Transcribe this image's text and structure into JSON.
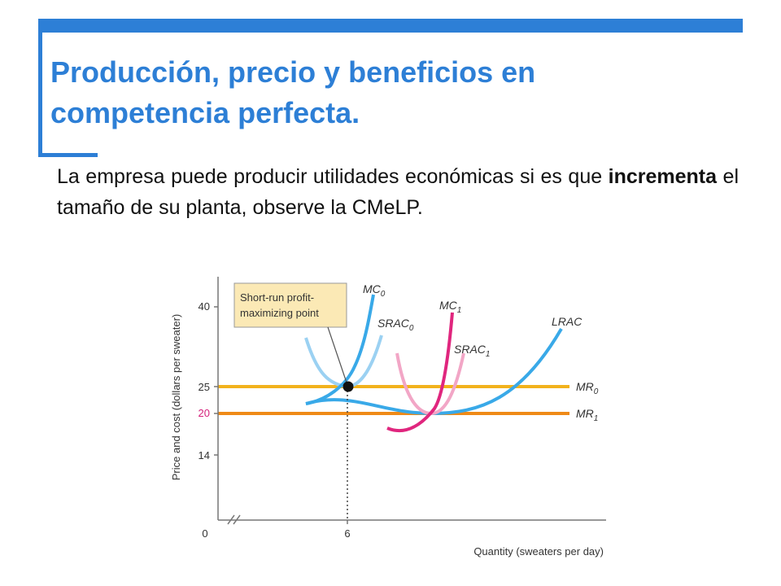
{
  "slide": {
    "title": "Producción, precio y beneficios en competencia perfecta.",
    "paragraph": {
      "before": "La empresa puede producir utilidades económicas si es que ",
      "bold": "incrementa",
      "after": " el tamaño de su planta, observe la CMeLP."
    }
  },
  "chart_data": {
    "type": "diagram",
    "ylabel": "Price and cost (dollars per sweater)",
    "xlabel": "Quantity (sweaters per day)",
    "y_ticks": [
      {
        "label": "40",
        "value": 40,
        "color": "#333333"
      },
      {
        "label": "25",
        "value": 25,
        "color": "#333333"
      },
      {
        "label": "20",
        "value": 20,
        "color": "#d41f7a"
      },
      {
        "label": "14",
        "value": 14,
        "color": "#333333"
      }
    ],
    "x_ticks": [
      {
        "label": "0",
        "value": 0
      },
      {
        "label": "6",
        "value": 6
      }
    ],
    "curves": [
      {
        "id": "MC0",
        "label": "MC",
        "sub": "0",
        "color": "#39a9e8"
      },
      {
        "id": "SRAC0",
        "label": "SRAC",
        "sub": "0",
        "color": "#9bd1f2"
      },
      {
        "id": "MC1",
        "label": "MC",
        "sub": "1",
        "color": "#e0267e"
      },
      {
        "id": "SRAC1",
        "label": "SRAC",
        "sub": "1",
        "color": "#f2a6c6"
      },
      {
        "id": "LRAC",
        "label": "LRAC",
        "sub": "",
        "color": "#39a9e8"
      },
      {
        "id": "MR0",
        "label": "MR",
        "sub": "0",
        "value": 25,
        "color": "#f2b21c"
      },
      {
        "id": "MR1",
        "label": "MR",
        "sub": "1",
        "value": 20,
        "color": "#ef8a17"
      }
    ],
    "annotation": {
      "lines": [
        "Short-run profit-",
        "maximizing point"
      ],
      "point": {
        "x": 6,
        "y": 25
      }
    }
  }
}
